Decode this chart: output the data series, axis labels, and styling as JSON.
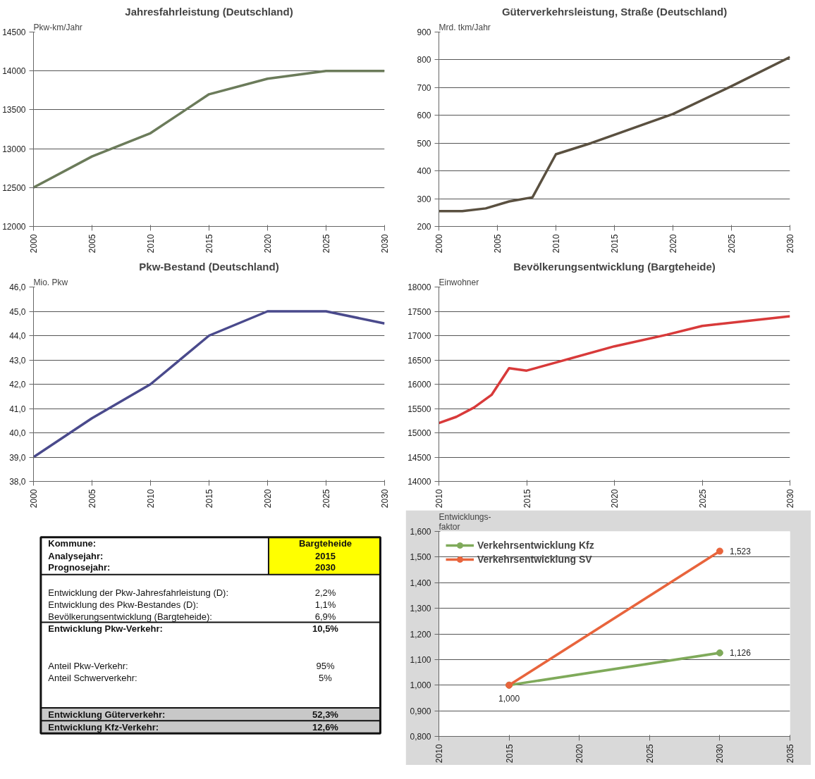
{
  "chart_data": [
    {
      "type": "line",
      "title": "Jahresfahrleistung (Deutschland)",
      "ylabel": "Pkw-km/Jahr",
      "xlim": [
        2000,
        2030
      ],
      "xticks": [
        2000,
        2005,
        2010,
        2015,
        2020,
        2025,
        2030
      ],
      "ylim": [
        12000,
        14500
      ],
      "yticks": [
        12000,
        12500,
        13000,
        13500,
        14000,
        14500
      ],
      "grid": "y",
      "series": [
        {
          "color": "#6b7b5a",
          "x": [
            2000,
            2005,
            2010,
            2013,
            2015,
            2020,
            2025,
            2030
          ],
          "values": [
            12500,
            12900,
            13200,
            13500,
            13700,
            13900,
            14000,
            14000
          ]
        }
      ]
    },
    {
      "type": "line",
      "title": "Güterverkehrsleistung, Straße (Deutschland)",
      "ylabel": "Mrd. tkm/Jahr",
      "xlim": [
        2000,
        2030
      ],
      "xticks": [
        2000,
        2005,
        2010,
        2015,
        2020,
        2025,
        2030
      ],
      "ylim": [
        200,
        900
      ],
      "yticks": [
        200,
        300,
        400,
        500,
        600,
        700,
        800,
        900
      ],
      "grid": "y",
      "series": [
        {
          "color": "#5a5040",
          "x": [
            2000,
            2002,
            2004,
            2006,
            2008,
            2010,
            2013,
            2015,
            2018,
            2020,
            2025,
            2030
          ],
          "values": [
            255,
            255,
            265,
            290,
            305,
            460,
            500,
            530,
            575,
            605,
            705,
            810
          ]
        }
      ]
    },
    {
      "type": "line",
      "title": "Pkw-Bestand (Deutschland)",
      "ylabel": "Mio. Pkw",
      "xlim": [
        2000,
        2030
      ],
      "xticks": [
        2000,
        2005,
        2010,
        2015,
        2020,
        2025,
        2030
      ],
      "ylim": [
        38,
        46
      ],
      "yticks": [
        {
          "value": 38,
          "label": "38,0"
        },
        {
          "value": 39,
          "label": "39,0"
        },
        {
          "value": 40,
          "label": "40,0"
        },
        {
          "value": 41,
          "label": "41,0"
        },
        {
          "value": 42,
          "label": "42,0"
        },
        {
          "value": 43,
          "label": "43,0"
        },
        {
          "value": 44,
          "label": "44,0"
        },
        {
          "value": 45,
          "label": "45,0"
        },
        {
          "value": 46,
          "label": "46,0"
        }
      ],
      "grid": "y",
      "series": [
        {
          "color": "#4a4a8c",
          "x": [
            2000,
            2005,
            2010,
            2015,
            2020,
            2025,
            2030
          ],
          "values": [
            39.0,
            40.6,
            42.0,
            44.0,
            45.0,
            45.0,
            44.5
          ]
        }
      ]
    },
    {
      "type": "line",
      "title": "Bevölkerungsentwicklung (Bargteheide)",
      "ylabel": "Einwohner",
      "xlim": [
        2010,
        2030
      ],
      "xticks": [
        2010,
        2015,
        2020,
        2025,
        2030
      ],
      "ylim": [
        14000,
        18000
      ],
      "yticks": [
        14000,
        14500,
        15000,
        15500,
        16000,
        16500,
        17000,
        17500,
        18000
      ],
      "grid": "y",
      "series": [
        {
          "color": "#d83a3a",
          "x": [
            2010,
            2011,
            2012,
            2013,
            2014,
            2015,
            2017,
            2020,
            2023,
            2025,
            2030
          ],
          "values": [
            15200,
            15330,
            15520,
            15780,
            16330,
            16280,
            16480,
            16780,
            17020,
            17200,
            17400
          ]
        }
      ]
    },
    {
      "type": "other",
      "annotations": [
        "Kommune:",
        "Bargteheide",
        "Analysejahr:",
        "2015",
        "Prognosejahr:",
        "2030",
        "Entwicklung der Pkw-Jahresfahrleistung (D):",
        "2,2%",
        "Entwicklung des Pkw-Bestandes (D):",
        "1,1%",
        "Bevölkerungsentwicklung (Bargteheide):",
        "6,9%",
        "Entwicklung Pkw-Verkehr:",
        "10,5%",
        "Anteil Pkw-Verkehr:",
        "95%",
        "Anteil Schwerverkehr:",
        "5%",
        "Entwicklung Güterverkehr:",
        "52,3%",
        "Entwicklung Kfz-Verkehr:",
        "12,6%"
      ]
    },
    {
      "type": "line",
      "ylabel": "Entwicklungs-\nfaktor",
      "xlim": [
        2010,
        2035
      ],
      "xticks": [
        2010,
        2015,
        2020,
        2025,
        2030,
        2035
      ],
      "ylim": [
        0.8,
        1.6
      ],
      "yticks": [
        {
          "value": 0.8,
          "label": "0,800"
        },
        {
          "value": 0.9,
          "label": "0,900"
        },
        {
          "value": 1.0,
          "label": "1,000"
        },
        {
          "value": 1.1,
          "label": "1,100"
        },
        {
          "value": 1.2,
          "label": "1,200"
        },
        {
          "value": 1.3,
          "label": "1,300"
        },
        {
          "value": 1.4,
          "label": "1,400"
        },
        {
          "value": 1.5,
          "label": "1,500"
        },
        {
          "value": 1.6,
          "label": "1,600"
        }
      ],
      "grid": "y",
      "legend": "top left",
      "marker": "circle",
      "series": [
        {
          "name": "Verkehrsentwicklung Kfz",
          "color": "#7faa5a",
          "x": [
            2015,
            2030
          ],
          "values": [
            1.0,
            1.126
          ],
          "value_labels": [
            "1,000",
            "1,126"
          ]
        },
        {
          "name": "Verkehrsentwicklung SV",
          "color": "#e8643c",
          "x": [
            2015,
            2030
          ],
          "values": [
            1.0,
            1.523
          ],
          "value_labels": [
            null,
            "1,523"
          ]
        }
      ]
    }
  ]
}
